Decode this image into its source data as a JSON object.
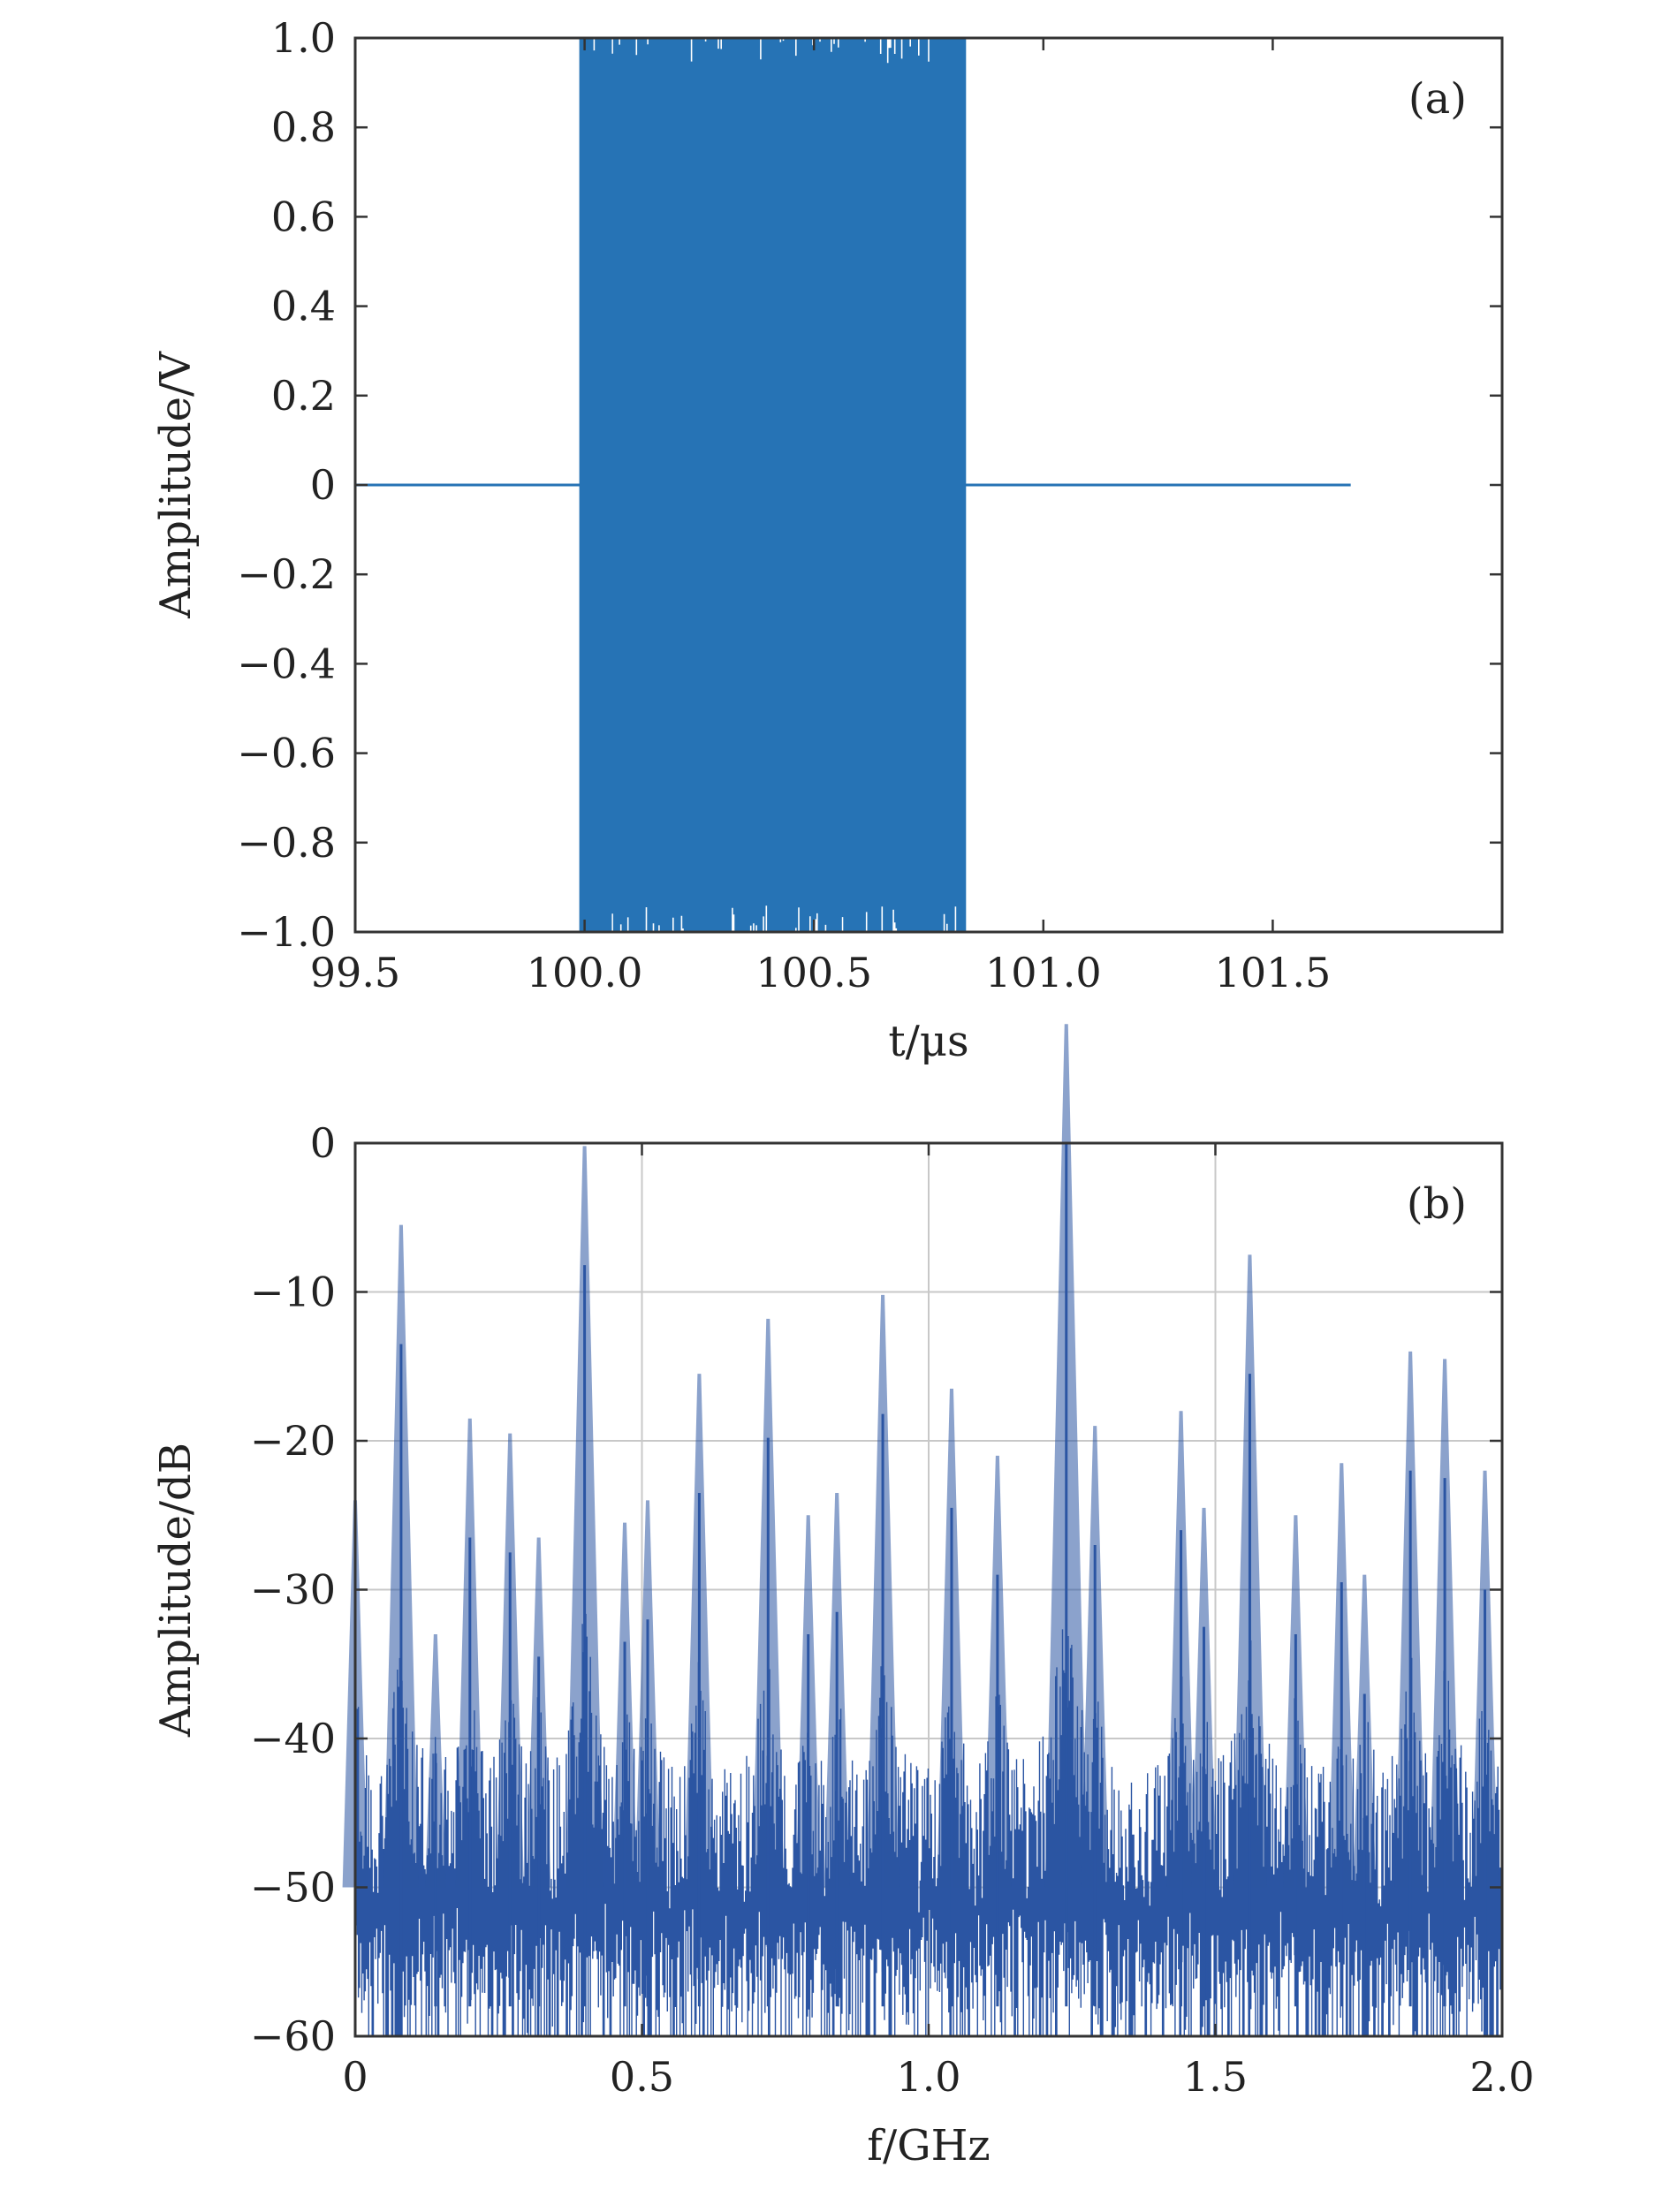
{
  "figure": {
    "colors": {
      "signal": "#2673b5",
      "spectrum": "#2b55a3",
      "axes": "#333333",
      "grid": "#c8c8c8"
    }
  },
  "chart_data": [
    {
      "type": "line",
      "panel_label": "(a)",
      "xlabel": "t/μs",
      "ylabel": "Amplitude/V",
      "xlim": [
        99.5,
        102.0
      ],
      "ylim": [
        -1.0,
        1.0
      ],
      "x_ticks": [
        99.5,
        100.0,
        100.5,
        101.0,
        101.5
      ],
      "x_tick_labels": [
        "99.5",
        "100.0",
        "100.5",
        "101.0",
        "101.5"
      ],
      "y_ticks": [
        1.0,
        0.8,
        0.6,
        0.4,
        0.2,
        0,
        -0.2,
        -0.4,
        -0.6,
        -0.8,
        -1.0
      ],
      "y_tick_labels": [
        "1.0",
        "0.8",
        "0.6",
        "0.4",
        "0.2",
        "0",
        "−0.2",
        "−0.4",
        "−0.6",
        "−0.8",
        "−1.0"
      ],
      "grid": false,
      "series": [
        {
          "segments": [
            {
              "kind": "flat",
              "x": [
                99.5,
                99.99
              ],
              "value": 0
            },
            {
              "kind": "oscillating burst",
              "x": [
                99.99,
                100.83
              ],
              "min": -1.0,
              "max": 1.0
            },
            {
              "kind": "flat",
              "x": [
                100.83,
                101.67
              ],
              "value": 0
            }
          ]
        }
      ]
    },
    {
      "type": "line",
      "panel_label": "(b)",
      "xlabel": "f/GHz",
      "ylabel": "Amplitude/dB",
      "xlim": [
        0,
        2.0
      ],
      "ylim": [
        -60,
        0
      ],
      "x_ticks": [
        0,
        0.5,
        1.0,
        1.5,
        2.0
      ],
      "x_tick_labels": [
        "0",
        "0.5",
        "1.0",
        "1.5",
        "2.0"
      ],
      "y_ticks": [
        0,
        -10,
        -20,
        -30,
        -40,
        -50,
        -60
      ],
      "y_tick_labels": [
        "0",
        "−10",
        "−20",
        "−30",
        "−40",
        "−50",
        "−60"
      ],
      "grid": true,
      "noise_floor_db": [
        -60,
        -44
      ],
      "series": [
        {
          "peaks": [
            {
              "f": 0.0,
              "db": -32
            },
            {
              "f": 0.08,
              "db": -13.5
            },
            {
              "f": 0.14,
              "db": -41
            },
            {
              "f": 0.2,
              "db": -26.5
            },
            {
              "f": 0.27,
              "db": -27.5
            },
            {
              "f": 0.32,
              "db": -34.5
            },
            {
              "f": 0.4,
              "db": -8.2
            },
            {
              "f": 0.47,
              "db": -33.5
            },
            {
              "f": 0.51,
              "db": -32
            },
            {
              "f": 0.6,
              "db": -23.5
            },
            {
              "f": 0.72,
              "db": -19.8
            },
            {
              "f": 0.79,
              "db": -33
            },
            {
              "f": 0.84,
              "db": -31.5
            },
            {
              "f": 0.92,
              "db": -18.2
            },
            {
              "f": 1.04,
              "db": -24.5
            },
            {
              "f": 1.12,
              "db": -29
            },
            {
              "f": 1.24,
              "db": 0
            },
            {
              "f": 1.29,
              "db": -27
            },
            {
              "f": 1.44,
              "db": -26
            },
            {
              "f": 1.48,
              "db": -32.5
            },
            {
              "f": 1.56,
              "db": -15.5
            },
            {
              "f": 1.64,
              "db": -33
            },
            {
              "f": 1.72,
              "db": -29.5
            },
            {
              "f": 1.76,
              "db": -37
            },
            {
              "f": 1.84,
              "db": -22
            },
            {
              "f": 1.9,
              "db": -22.5
            },
            {
              "f": 1.97,
              "db": -30
            }
          ]
        }
      ]
    }
  ]
}
